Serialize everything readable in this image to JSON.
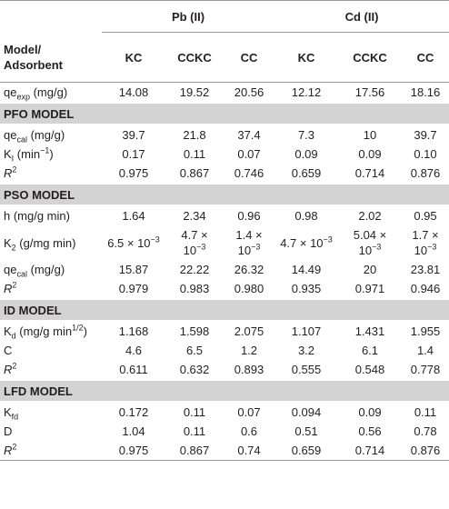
{
  "table": {
    "header": {
      "groups": [
        "Pb (II)",
        "Cd (II)"
      ],
      "corner": "Model/ Adsorbent",
      "columns": [
        "KC",
        "CCKC",
        "CC",
        "KC",
        "CCKC",
        "CC"
      ]
    },
    "rows": [
      {
        "label": [
          "qe",
          {
            "sub": "exp"
          },
          " (mg/g)"
        ],
        "cells": [
          "14.08",
          "19.52",
          "20.56",
          "12.12",
          "17.56",
          "18.16"
        ]
      },
      {
        "section": "PFO MODEL"
      },
      {
        "label": [
          "qe",
          {
            "sub": "cal"
          },
          " (mg/g)"
        ],
        "cells": [
          "39.7",
          "21.8",
          "37.4",
          "7.3",
          "10",
          "39.7"
        ]
      },
      {
        "label": [
          "K",
          {
            "sub": "I"
          },
          " (min",
          {
            "sup": "−1"
          },
          ")"
        ],
        "cells": [
          "0.17",
          "0.11",
          "0.07",
          "0.09",
          "0.09",
          "0.10"
        ]
      },
      {
        "label": [
          {
            "i": "R"
          },
          {
            "sup": "2"
          }
        ],
        "cells": [
          "0.975",
          "0.867",
          "0.746",
          "0.659",
          "0.714",
          "0.876"
        ]
      },
      {
        "section": "PSO MODEL"
      },
      {
        "label": [
          "h (mg/g min)"
        ],
        "cells": [
          "1.64",
          "2.34",
          "0.96",
          "0.98",
          "2.02",
          "0.95"
        ]
      },
      {
        "label": [
          "K",
          {
            "sub": "2"
          },
          " (g/mg min)"
        ],
        "cells": [
          [
            "6.5 × 10",
            {
              "sup": "−3"
            }
          ],
          [
            "4.7 × 10",
            {
              "sup": "−3"
            }
          ],
          [
            "1.4 × 10",
            {
              "sup": "−3"
            }
          ],
          [
            "4.7 × 10",
            {
              "sup": "−3"
            }
          ],
          [
            "5.04 × 10",
            {
              "sup": "−3"
            }
          ],
          [
            "1.7 × 10",
            {
              "sup": "−3"
            }
          ]
        ]
      },
      {
        "label": [
          "qe",
          {
            "sub": "cal"
          },
          " (mg/g)"
        ],
        "cells": [
          "15.87",
          "22.22",
          "26.32",
          "14.49",
          "20",
          "23.81"
        ]
      },
      {
        "label": [
          {
            "i": "R"
          },
          {
            "sup": "2"
          }
        ],
        "cells": [
          "0.979",
          "0.983",
          "0.980",
          "0.935",
          "0.971",
          "0.946"
        ]
      },
      {
        "section": "ID MODEL"
      },
      {
        "label": [
          "K",
          {
            "sub": "d"
          },
          " (mg/g min",
          {
            "sup": "1/2"
          },
          ")"
        ],
        "cells": [
          "1.168",
          "1.598",
          "2.075",
          "1.107",
          "1.431",
          "1.955"
        ]
      },
      {
        "label": [
          "C"
        ],
        "cells": [
          "4.6",
          "6.5",
          "1.2",
          "3.2",
          "6.1",
          "1.4"
        ]
      },
      {
        "label": [
          {
            "i": "R"
          },
          {
            "sup": "2"
          }
        ],
        "cells": [
          "0.611",
          "0.632",
          "0.893",
          "0.555",
          "0.548",
          "0.778"
        ]
      },
      {
        "section": "LFD MODEL"
      },
      {
        "label": [
          "K",
          {
            "sub": "fd"
          }
        ],
        "cells": [
          "0.172",
          "0.11",
          "0.07",
          "0.094",
          "0.09",
          "0.11"
        ]
      },
      {
        "label": [
          "D"
        ],
        "cells": [
          "1.04",
          "0.11",
          "0.6",
          "0.51",
          "0.56",
          "0.78"
        ]
      },
      {
        "label": [
          {
            "i": "R"
          },
          {
            "sup": "2"
          }
        ],
        "cells": [
          "0.975",
          "0.867",
          "0.74",
          "0.659",
          "0.714",
          "0.876"
        ]
      }
    ]
  }
}
